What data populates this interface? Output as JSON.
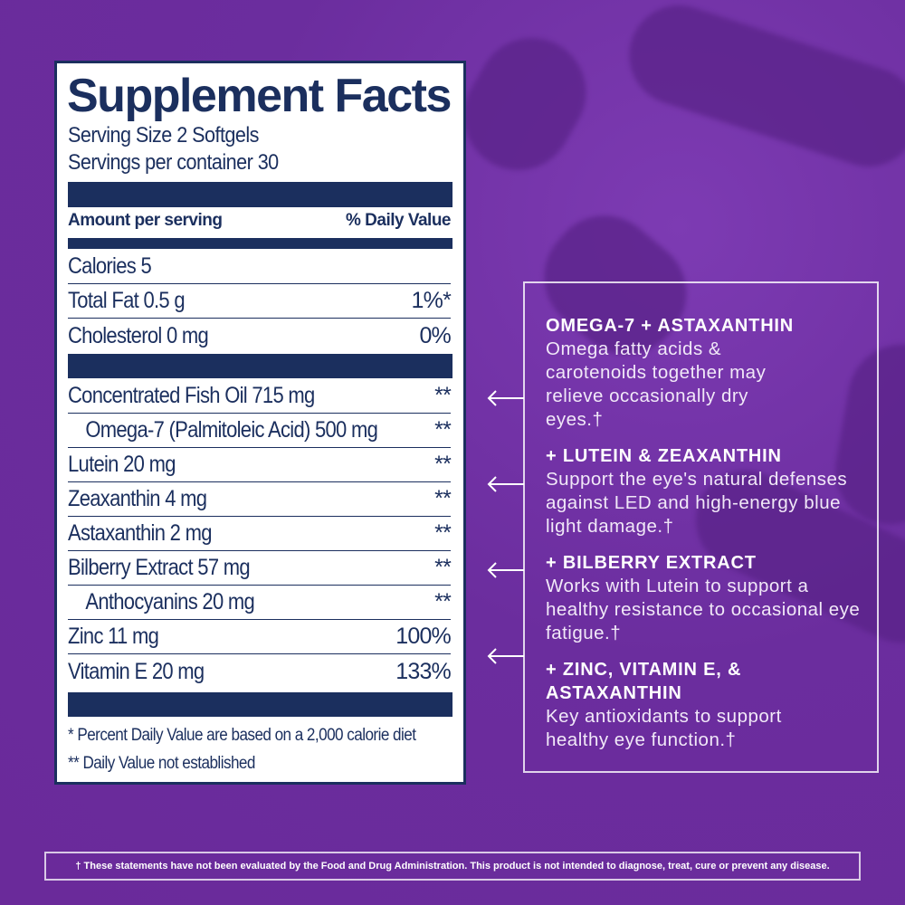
{
  "label": {
    "title": "Supplement Facts",
    "serving_size": "Serving Size 2 Softgels",
    "servings_per_container": "Servings per container 30",
    "amount_header": "Amount per serving",
    "dv_header": "% Daily Value",
    "rows": [
      {
        "name": "Calories 5",
        "dv": ""
      },
      {
        "name": "Total Fat 0.5 g",
        "dv": "1%*"
      },
      {
        "name": "Cholesterol 0 mg",
        "dv": "0%"
      },
      {
        "name": "Concentrated Fish Oil 715 mg",
        "dv": "**"
      },
      {
        "name": "Omega-7 (Palmitoleic Acid) 500 mg",
        "dv": "**"
      },
      {
        "name": "Lutein 20 mg",
        "dv": "**"
      },
      {
        "name": "Zeaxanthin 4 mg",
        "dv": "**"
      },
      {
        "name": "Astaxanthin 2 mg",
        "dv": "**"
      },
      {
        "name": "Bilberry Extract  57 mg",
        "dv": "**"
      },
      {
        "name": "Anthocyanins 20 mg",
        "dv": "**"
      },
      {
        "name": "Zinc 11 mg",
        "dv": "100%"
      },
      {
        "name": "Vitamin E 20 mg",
        "dv": "133%"
      }
    ],
    "footnote1": "* Percent Daily Value are based on a 2,000 calorie diet",
    "footnote2": "** Daily Value not established"
  },
  "benefits": [
    {
      "title": "OMEGA-7 + ASTAXANTHIN",
      "text": "Omega fatty acids & carotenoids together may relieve occasionally dry eyes.†"
    },
    {
      "title": "+ LUTEIN & ZEAXANTHIN",
      "text": "Support the eye's natural defenses against LED and high-energy blue light damage.†"
    },
    {
      "title": "+ BILBERRY EXTRACT",
      "text": "Works with Lutein to support a healthy resistance to occasional eye fatigue.†"
    },
    {
      "title": "+ ZINC, VITAMIN E, & ASTAXANTHIN",
      "text": "Key antioxidants to support healthy eye function.†"
    }
  ],
  "disclaimer": "† These statements have not been evaluated by the Food and Drug Administration. This product is not intended to diagnose, treat, cure or prevent any disease.",
  "colors": {
    "background": "#6b2d9e",
    "label_navy": "#1b2f5e"
  }
}
